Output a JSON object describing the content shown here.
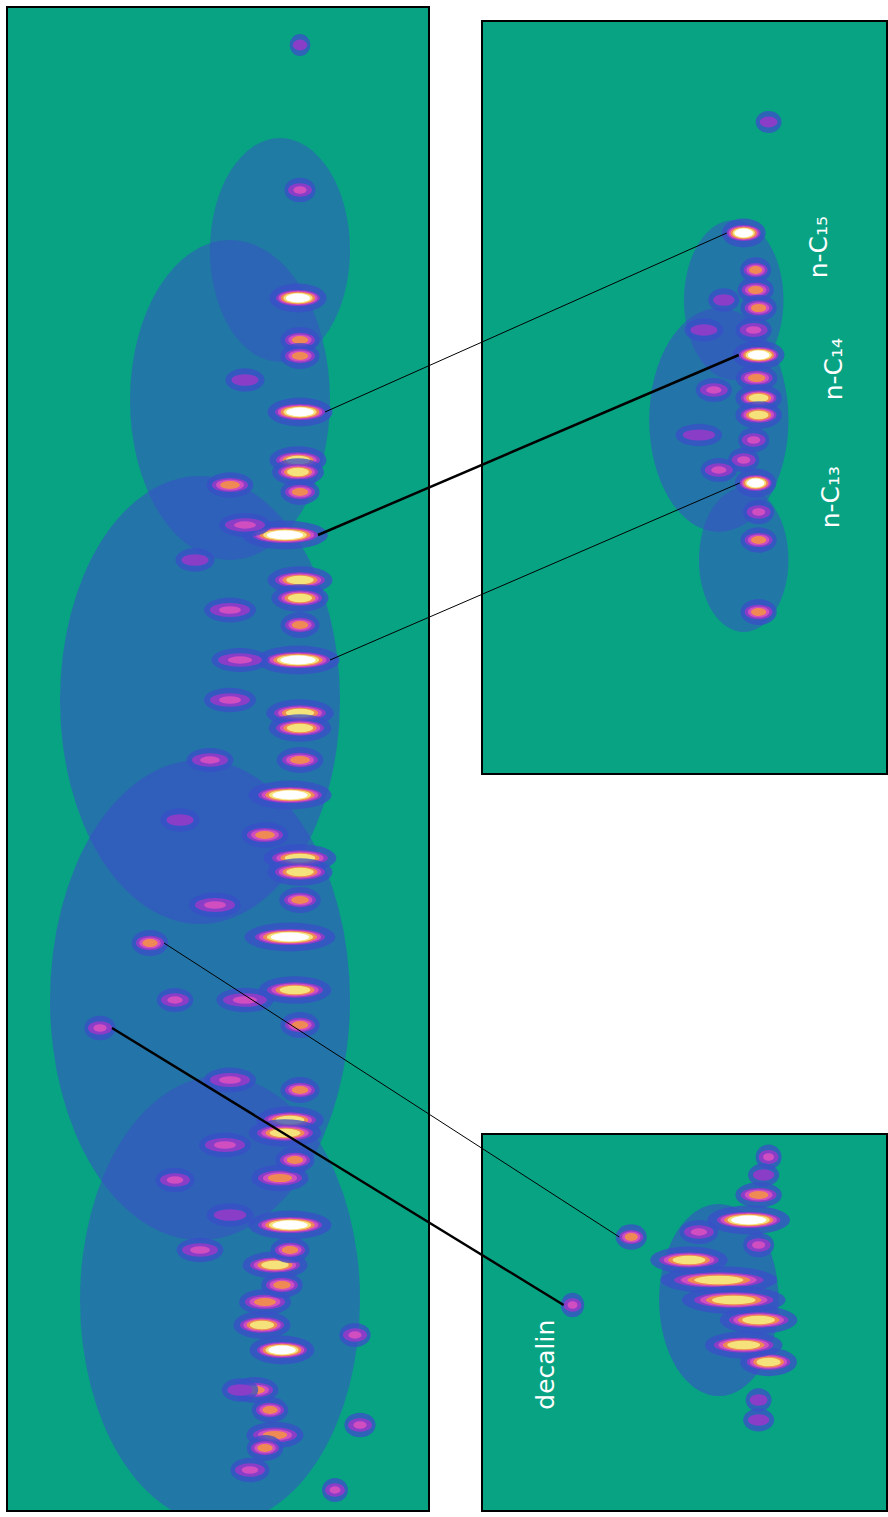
{
  "chart_data": [
    {
      "type": "scatter",
      "marker": "ellipse",
      "tick_labels": false,
      "grid": false,
      "xlim": [
        8,
        428
      ],
      "ylim": [
        1510,
        8
      ],
      "peaks": [
        {
          "x": 230,
          "y": 400,
          "width": 100,
          "intensity": 0.08
        },
        {
          "x": 200,
          "y": 700,
          "width": 140,
          "intensity": 0.1
        },
        {
          "x": 200,
          "y": 1000,
          "width": 150,
          "intensity": 0.1
        },
        {
          "x": 220,
          "y": 1300,
          "width": 140,
          "intensity": 0.08
        },
        {
          "x": 280,
          "y": 250,
          "width": 70,
          "intensity": 0.06
        },
        {
          "x": 300,
          "y": 412,
          "width": 25,
          "intensity": 1.0
        },
        {
          "x": 285,
          "y": 535,
          "width": 33,
          "intensity": 1.0
        },
        {
          "x": 298,
          "y": 660,
          "width": 32,
          "intensity": 1.0
        },
        {
          "x": 298,
          "y": 298,
          "width": 22,
          "intensity": 1.0
        },
        {
          "x": 290,
          "y": 795,
          "width": 32,
          "intensity": 1.0
        },
        {
          "x": 290,
          "y": 937,
          "width": 35,
          "intensity": 1.0
        },
        {
          "x": 290,
          "y": 1225,
          "width": 32,
          "intensity": 1.0
        },
        {
          "x": 282,
          "y": 1350,
          "width": 25,
          "intensity": 1.0
        },
        {
          "x": 150,
          "y": 943,
          "width": 14,
          "intensity": 0.75
        },
        {
          "x": 100,
          "y": 1028,
          "width": 12,
          "intensity": 0.6
        },
        {
          "x": 298,
          "y": 460,
          "width": 22,
          "intensity": 0.88
        },
        {
          "x": 298,
          "y": 472,
          "width": 20,
          "intensity": 0.88
        },
        {
          "x": 300,
          "y": 580,
          "width": 25,
          "intensity": 0.88
        },
        {
          "x": 300,
          "y": 598,
          "width": 22,
          "intensity": 0.88
        },
        {
          "x": 300,
          "y": 713,
          "width": 26,
          "intensity": 0.88
        },
        {
          "x": 300,
          "y": 728,
          "width": 24,
          "intensity": 0.88
        },
        {
          "x": 300,
          "y": 858,
          "width": 28,
          "intensity": 0.88
        },
        {
          "x": 300,
          "y": 872,
          "width": 25,
          "intensity": 0.88
        },
        {
          "x": 295,
          "y": 990,
          "width": 28,
          "intensity": 0.88
        },
        {
          "x": 290,
          "y": 1120,
          "width": 26,
          "intensity": 0.88
        },
        {
          "x": 285,
          "y": 1133,
          "width": 28,
          "intensity": 0.88
        },
        {
          "x": 280,
          "y": 1178,
          "width": 22,
          "intensity": 0.8
        },
        {
          "x": 275,
          "y": 1265,
          "width": 25,
          "intensity": 0.85
        },
        {
          "x": 265,
          "y": 1302,
          "width": 20,
          "intensity": 0.75
        },
        {
          "x": 262,
          "y": 1325,
          "width": 22,
          "intensity": 0.9
        },
        {
          "x": 255,
          "y": 1390,
          "width": 18,
          "intensity": 0.75
        },
        {
          "x": 250,
          "y": 1470,
          "width": 15,
          "intensity": 0.6
        },
        {
          "x": 275,
          "y": 1435,
          "width": 22,
          "intensity": 0.8
        },
        {
          "x": 300,
          "y": 340,
          "width": 15,
          "intensity": 0.72
        },
        {
          "x": 300,
          "y": 356,
          "width": 15,
          "intensity": 0.72
        },
        {
          "x": 300,
          "y": 492,
          "width": 15,
          "intensity": 0.72
        },
        {
          "x": 300,
          "y": 625,
          "width": 15,
          "intensity": 0.72
        },
        {
          "x": 300,
          "y": 760,
          "width": 18,
          "intensity": 0.72
        },
        {
          "x": 300,
          "y": 900,
          "width": 16,
          "intensity": 0.72
        },
        {
          "x": 300,
          "y": 1025,
          "width": 15,
          "intensity": 0.72
        },
        {
          "x": 300,
          "y": 1090,
          "width": 15,
          "intensity": 0.72
        },
        {
          "x": 295,
          "y": 1160,
          "width": 15,
          "intensity": 0.72
        },
        {
          "x": 290,
          "y": 1250,
          "width": 15,
          "intensity": 0.72
        },
        {
          "x": 282,
          "y": 1285,
          "width": 16,
          "intensity": 0.72
        },
        {
          "x": 270,
          "y": 1410,
          "width": 14,
          "intensity": 0.72
        },
        {
          "x": 265,
          "y": 1448,
          "width": 14,
          "intensity": 0.72
        },
        {
          "x": 230,
          "y": 485,
          "width": 18,
          "intensity": 0.7
        },
        {
          "x": 245,
          "y": 525,
          "width": 20,
          "intensity": 0.55
        },
        {
          "x": 230,
          "y": 610,
          "width": 20,
          "intensity": 0.65
        },
        {
          "x": 240,
          "y": 660,
          "width": 22,
          "intensity": 0.55
        },
        {
          "x": 230,
          "y": 700,
          "width": 20,
          "intensity": 0.6
        },
        {
          "x": 265,
          "y": 835,
          "width": 18,
          "intensity": 0.7
        },
        {
          "x": 215,
          "y": 905,
          "width": 20,
          "intensity": 0.65
        },
        {
          "x": 245,
          "y": 1000,
          "width": 22,
          "intensity": 0.6
        },
        {
          "x": 230,
          "y": 1080,
          "width": 20,
          "intensity": 0.65
        },
        {
          "x": 225,
          "y": 1145,
          "width": 20,
          "intensity": 0.65
        },
        {
          "x": 175,
          "y": 1180,
          "width": 15,
          "intensity": 0.6
        },
        {
          "x": 200,
          "y": 1250,
          "width": 18,
          "intensity": 0.6
        },
        {
          "x": 175,
          "y": 1000,
          "width": 14,
          "intensity": 0.55
        },
        {
          "x": 195,
          "y": 560,
          "width": 15,
          "intensity": 0.5
        },
        {
          "x": 210,
          "y": 760,
          "width": 18,
          "intensity": 0.55
        },
        {
          "x": 245,
          "y": 380,
          "width": 15,
          "intensity": 0.5
        },
        {
          "x": 180,
          "y": 820,
          "width": 15,
          "intensity": 0.5
        },
        {
          "x": 355,
          "y": 1335,
          "width": 12,
          "intensity": 0.55
        },
        {
          "x": 360,
          "y": 1425,
          "width": 12,
          "intensity": 0.6
        },
        {
          "x": 335,
          "y": 1490,
          "width": 10,
          "intensity": 0.55
        },
        {
          "x": 300,
          "y": 190,
          "width": 12,
          "intensity": 0.6
        },
        {
          "x": 300,
          "y": 45,
          "width": 8,
          "intensity": 0.35
        },
        {
          "x": 230,
          "y": 1215,
          "width": 18,
          "intensity": 0.5
        },
        {
          "x": 240,
          "y": 1390,
          "width": 14,
          "intensity": 0.5
        }
      ]
    },
    {
      "type": "scatter",
      "marker": "ellipse",
      "tick_labels": false,
      "grid": false,
      "xlim": [
        483,
        888
      ],
      "ylim": [
        773,
        22
      ],
      "peaks": [
        {
          "x": 720,
          "y": 420,
          "width": 70,
          "intensity": 0.1
        },
        {
          "x": 735,
          "y": 300,
          "width": 50,
          "intensity": 0.08
        },
        {
          "x": 745,
          "y": 560,
          "width": 45,
          "intensity": 0.08
        },
        {
          "x": 745,
          "y": 233,
          "width": 17,
          "intensity": 1.0,
          "label": "n-C₁₅"
        },
        {
          "x": 760,
          "y": 355,
          "width": 20,
          "intensity": 1.0,
          "label": "n-C₁₄"
        },
        {
          "x": 757,
          "y": 483,
          "width": 16,
          "intensity": 1.0,
          "label": "n-C₁₃"
        },
        {
          "x": 757,
          "y": 270,
          "width": 12,
          "intensity": 0.7
        },
        {
          "x": 757,
          "y": 290,
          "width": 14,
          "intensity": 0.75
        },
        {
          "x": 760,
          "y": 308,
          "width": 14,
          "intensity": 0.8
        },
        {
          "x": 755,
          "y": 330,
          "width": 14,
          "intensity": 0.65
        },
        {
          "x": 758,
          "y": 378,
          "width": 16,
          "intensity": 0.75
        },
        {
          "x": 760,
          "y": 398,
          "width": 18,
          "intensity": 0.9
        },
        {
          "x": 760,
          "y": 415,
          "width": 18,
          "intensity": 0.9
        },
        {
          "x": 755,
          "y": 440,
          "width": 12,
          "intensity": 0.6
        },
        {
          "x": 745,
          "y": 460,
          "width": 12,
          "intensity": 0.6
        },
        {
          "x": 760,
          "y": 512,
          "width": 12,
          "intensity": 0.6
        },
        {
          "x": 760,
          "y": 540,
          "width": 14,
          "intensity": 0.7
        },
        {
          "x": 760,
          "y": 612,
          "width": 14,
          "intensity": 0.75
        },
        {
          "x": 770,
          "y": 122,
          "width": 10,
          "intensity": 0.35
        },
        {
          "x": 715,
          "y": 390,
          "width": 14,
          "intensity": 0.55
        },
        {
          "x": 700,
          "y": 435,
          "width": 18,
          "intensity": 0.4
        },
        {
          "x": 720,
          "y": 470,
          "width": 14,
          "intensity": 0.55
        },
        {
          "x": 705,
          "y": 330,
          "width": 15,
          "intensity": 0.45
        },
        {
          "x": 725,
          "y": 300,
          "width": 12,
          "intensity": 0.5
        }
      ]
    },
    {
      "type": "scatter",
      "marker": "ellipse",
      "tick_labels": false,
      "grid": false,
      "xlim": [
        483,
        888
      ],
      "ylim": [
        1510,
        1135
      ],
      "peaks": [
        {
          "x": 720,
          "y": 1300,
          "width": 60,
          "intensity": 0.12
        },
        {
          "x": 632,
          "y": 1237,
          "width": 12,
          "intensity": 0.7
        },
        {
          "x": 573,
          "y": 1305,
          "width": 9,
          "intensity": 0.6,
          "label": "decalin"
        },
        {
          "x": 770,
          "y": 1157,
          "width": 10,
          "intensity": 0.65
        },
        {
          "x": 765,
          "y": 1175,
          "width": 12,
          "intensity": 0.45
        },
        {
          "x": 760,
          "y": 1195,
          "width": 18,
          "intensity": 0.7
        },
        {
          "x": 750,
          "y": 1220,
          "width": 32,
          "intensity": 1.0
        },
        {
          "x": 690,
          "y": 1260,
          "width": 30,
          "intensity": 0.85
        },
        {
          "x": 720,
          "y": 1280,
          "width": 45,
          "intensity": 0.9
        },
        {
          "x": 735,
          "y": 1300,
          "width": 40,
          "intensity": 0.95
        },
        {
          "x": 760,
          "y": 1320,
          "width": 30,
          "intensity": 0.9
        },
        {
          "x": 770,
          "y": 1362,
          "width": 22,
          "intensity": 0.95
        },
        {
          "x": 745,
          "y": 1345,
          "width": 30,
          "intensity": 0.85
        },
        {
          "x": 700,
          "y": 1232,
          "width": 15,
          "intensity": 0.55
        },
        {
          "x": 760,
          "y": 1400,
          "width": 10,
          "intensity": 0.5
        },
        {
          "x": 760,
          "y": 1420,
          "width": 12,
          "intensity": 0.45
        },
        {
          "x": 760,
          "y": 1245,
          "width": 12,
          "intensity": 0.6
        }
      ]
    }
  ],
  "links": [
    {
      "from": {
        "panel": 0,
        "peak": 5
      },
      "to": {
        "panel": 1,
        "peak": 3
      },
      "line_style": "thin"
    },
    {
      "from": {
        "panel": 0,
        "peak": 6
      },
      "to": {
        "panel": 1,
        "peak": 4
      },
      "line_style": "bold"
    },
    {
      "from": {
        "panel": 0,
        "peak": 7
      },
      "to": {
        "panel": 1,
        "peak": 5
      },
      "line_style": "thin"
    },
    {
      "from": {
        "panel": 0,
        "peak": 13
      },
      "to": {
        "panel": 2,
        "peak": 1
      },
      "line_style": "thin"
    },
    {
      "from": {
        "panel": 0,
        "peak": 14
      },
      "to": {
        "panel": 2,
        "peak": 2
      },
      "line_style": "bold"
    }
  ]
}
